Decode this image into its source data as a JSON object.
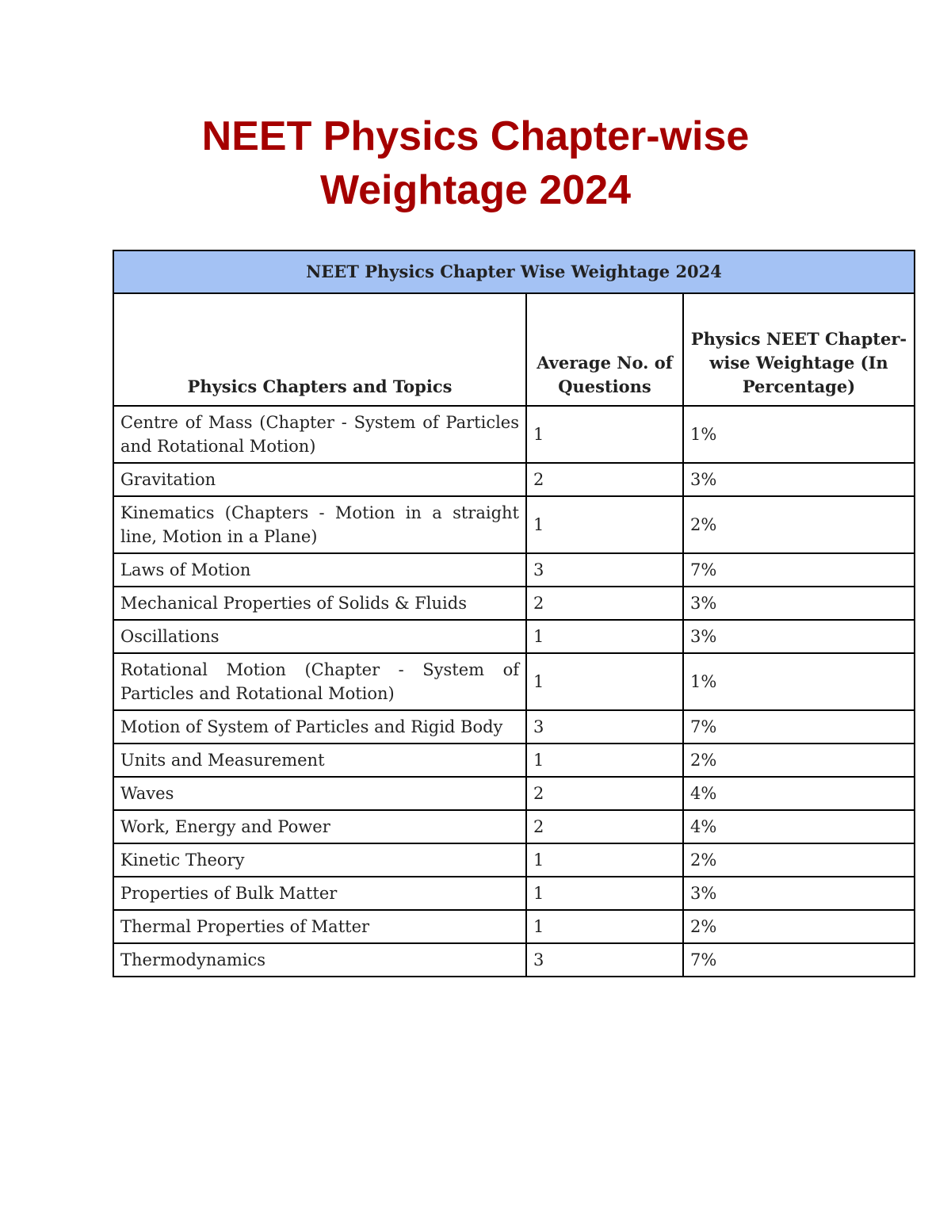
{
  "title": {
    "line1": "NEET Physics Chapter-wise",
    "line2": "Weightage 2024"
  },
  "table": {
    "caption": "NEET Physics Chapter Wise Weightage 2024",
    "headers": [
      "Physics Chapters and Topics",
      "Average No. of Questions",
      "Physics NEET Chapter-wise Weightage (In Percentage)"
    ],
    "rows": [
      [
        "Centre of Mass (Chapter - System of Particles and Rotational Motion)",
        "1",
        "1%"
      ],
      [
        "Gravitation",
        "2",
        "3%"
      ],
      [
        "Kinematics (Chapters - Motion in a straight line, Motion in a Plane)",
        "1",
        "2%"
      ],
      [
        "Laws of Motion",
        "3",
        "7%"
      ],
      [
        "Mechanical Properties of Solids & Fluids",
        "2",
        "3%"
      ],
      [
        "Oscillations",
        "1",
        "3%"
      ],
      [
        "Rotational Motion (Chapter - System of Particles and Rotational Motion)",
        "1",
        "1%"
      ],
      [
        "Motion of System of Particles and Rigid Body",
        "3",
        "7%"
      ],
      [
        "Units and Measurement",
        "1",
        "2%"
      ],
      [
        "Waves",
        "2",
        "4%"
      ],
      [
        "Work, Energy and Power",
        "2",
        "4%"
      ],
      [
        "Kinetic Theory",
        "1",
        "2%"
      ],
      [
        "Properties of Bulk Matter",
        "1",
        "3%"
      ],
      [
        "Thermal Properties of Matter",
        "1",
        "2%"
      ],
      [
        "Thermodynamics",
        "3",
        "7%"
      ]
    ]
  },
  "colors": {
    "title": "#a50000",
    "caption_bg": "#a4c2f4"
  }
}
